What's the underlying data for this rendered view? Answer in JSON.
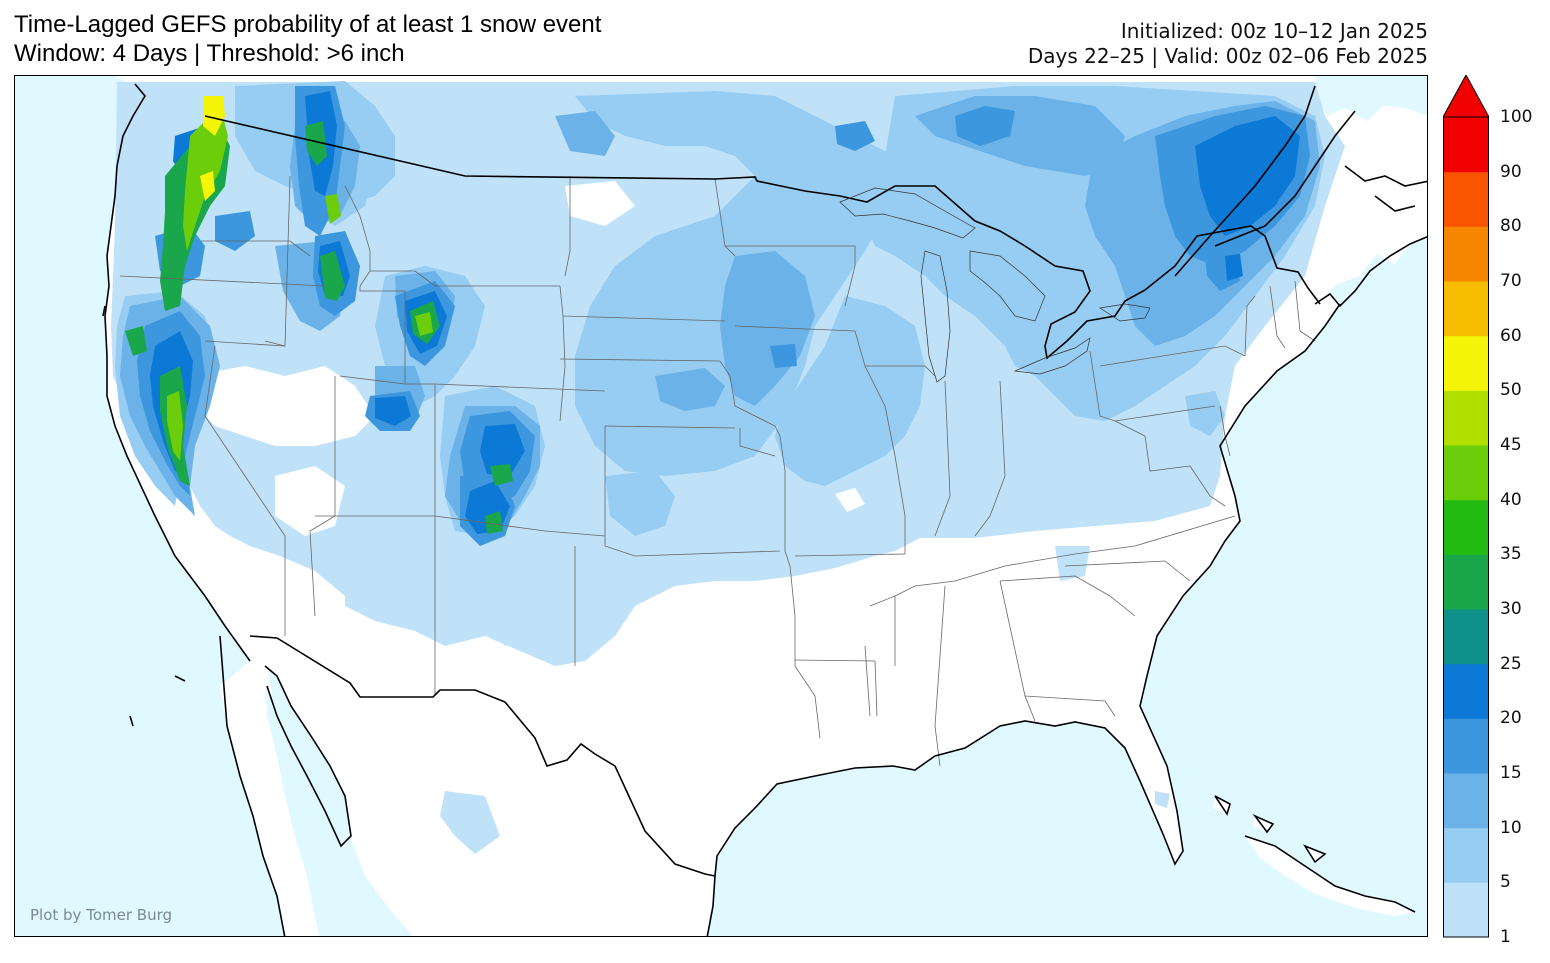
{
  "title": {
    "line1": "Time-Lagged GEFS probability of at least 1 snow event",
    "line2": "Window: 4 Days | Threshold: >6 inch"
  },
  "info": {
    "initialized": "Initialized: 00z 10–12 Jan 2025",
    "valid": "Days 22–25 | Valid: 00z 02–06 Feb 2025"
  },
  "credit": "Plot by Tomer Burg",
  "colors": {
    "ocean": "#e0f8ff",
    "land": "#ffffff"
  },
  "colorbar": {
    "levels": [
      1,
      5,
      10,
      15,
      20,
      25,
      30,
      35,
      40,
      45,
      50,
      60,
      70,
      80,
      90,
      100
    ],
    "colors": [
      "#c0e2f8",
      "#97cdf2",
      "#6ab2e8",
      "#3d97de",
      "#0c79d6",
      "#10908a",
      "#1aa64a",
      "#22bb12",
      "#6ccd0a",
      "#b0df00",
      "#f5f50a",
      "#f7bd00",
      "#f88700",
      "#f95500",
      "#f10000"
    ],
    "extend": "max"
  }
}
